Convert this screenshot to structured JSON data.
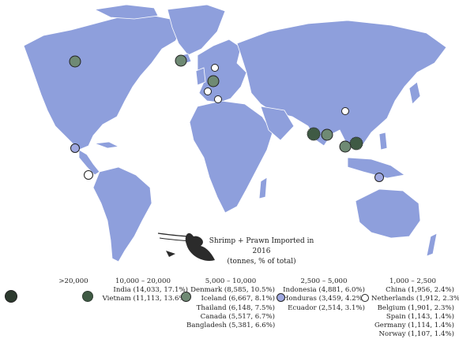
{
  "title_line1": "Shrimp + Prawn Imported in 2016",
  "title_line2": "(tonnes, % of total)",
  "colors": {
    "land": "#8e9fdc",
    "ocean": "#ffffff",
    "tier1": "#2c3a2e",
    "tier2": "#3f5a44",
    "tier3": "#6f8a74",
    "tier4": "#9fa8e0",
    "tier5": "#ffffff"
  },
  "legend": [
    {
      "range": ">20,000",
      "items": []
    },
    {
      "range": "10,000 – 20,000",
      "items": [
        "India (14,033, 17.1%)",
        "Vietnam (11,113, 13.6%)"
      ]
    },
    {
      "range": "5,000 – 10,000",
      "items": [
        "Denmark (8,585, 10.5%)",
        "Iceland (6,667, 8.1%)",
        "Thailand (6,148, 7.5%)",
        "Canada (5,517, 6.7%)",
        "Bangladesh (5,381, 6.6%)"
      ]
    },
    {
      "range": "2,500 – 5,000",
      "items": [
        "Indonesia (4,881, 6.0%)",
        "Honduras (3,459, 4.2%)",
        "Ecuador (2,514, 3.1%)"
      ]
    },
    {
      "range": "1,000 – 2,500",
      "items": [
        "China (1,956, 2.4%)",
        "Netherlands (1,912, 2.3%)",
        "Belgium (1,901, 2.3%)",
        "Spain (1,143, 1.4%)",
        "Germany (1,114, 1.4%)",
        "Norway (1,107, 1.4%)"
      ]
    }
  ]
}
